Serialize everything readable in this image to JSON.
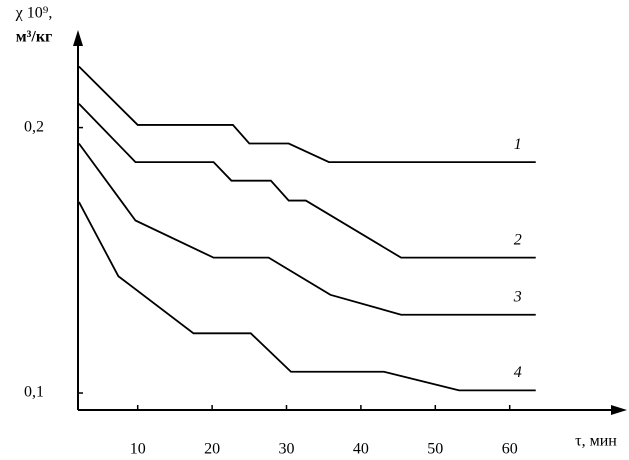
{
  "chart_data": {
    "type": "line",
    "y_label": [
      "χ 10⁹,",
      "м³/кг"
    ],
    "x_label": "τ, мин",
    "xlim": [
      2,
      75
    ],
    "ylim": [
      0.0936,
      0.233
    ],
    "xticks": [
      10,
      20,
      30,
      40,
      50,
      60
    ],
    "yticks": [
      {
        "value": 0.1,
        "label": "0,1"
      },
      {
        "value": 0.2,
        "label": "0,2"
      }
    ],
    "grid": false,
    "series": [
      {
        "name": "1",
        "color": "#000000",
        "x": [
          2.1,
          10,
          22.8,
          25,
          30.3,
          35.7,
          63.5
        ],
        "values": [
          0.223,
          0.201,
          0.201,
          0.194,
          0.194,
          0.187,
          0.187
        ]
      },
      {
        "name": "2",
        "color": "#000000",
        "x": [
          2.1,
          9.7,
          20.2,
          22.6,
          27.9,
          30.3,
          32.6,
          45.4,
          63.5
        ],
        "values": [
          0.209,
          0.187,
          0.187,
          0.18,
          0.18,
          0.1725,
          0.1725,
          0.151,
          0.151
        ]
      },
      {
        "name": "3",
        "color": "#000000",
        "x": [
          2.1,
          9.7,
          20.2,
          27.6,
          35.9,
          45.4,
          63.5
        ],
        "values": [
          0.194,
          0.165,
          0.151,
          0.151,
          0.137,
          0.1295,
          0.1295
        ]
      },
      {
        "name": "4",
        "color": "#000000",
        "x": [
          2.1,
          7.4,
          17.5,
          25.2,
          30.6,
          43.1,
          53.2,
          63.5
        ],
        "values": [
          0.172,
          0.144,
          0.1225,
          0.1225,
          0.108,
          0.108,
          0.101,
          0.101
        ]
      }
    ]
  }
}
